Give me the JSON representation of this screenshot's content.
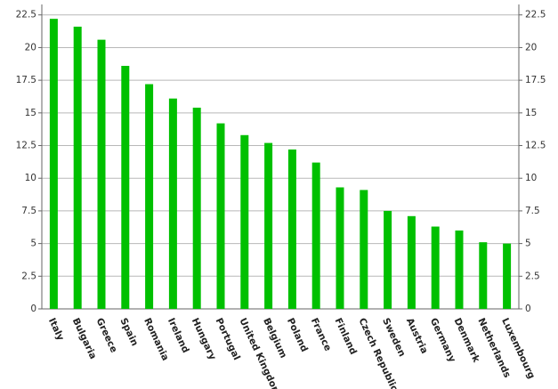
{
  "chart_data": {
    "type": "bar",
    "categories": [
      "Italy",
      "Bulgaria",
      "Greece",
      "Spain",
      "Romania",
      "Ireland",
      "Hungary",
      "Portugal",
      "United Kingdom",
      "Belgium",
      "Poland",
      "France",
      "Finland",
      "Czech Republic",
      "Sweden",
      "Austria",
      "Germany",
      "Denmark",
      "Netherlands",
      "Luxembourg"
    ],
    "values": [
      22.2,
      21.6,
      20.6,
      18.6,
      17.2,
      16.1,
      15.4,
      14.2,
      13.3,
      12.7,
      12.2,
      11.2,
      9.3,
      9.1,
      7.5,
      7.1,
      6.3,
      6.0,
      5.1,
      5.0
    ],
    "color": "#00c000",
    "ylim": [
      0,
      23.3
    ],
    "yticks": [
      0,
      2.5,
      5,
      7.5,
      10,
      12.5,
      15,
      17.5,
      20,
      22.5
    ],
    "y2lim": [
      0,
      23.3
    ],
    "y2ticks": [
      0,
      2.5,
      5,
      7.5,
      10,
      12.5,
      15,
      17.5,
      20,
      22.5
    ],
    "grid": true
  }
}
